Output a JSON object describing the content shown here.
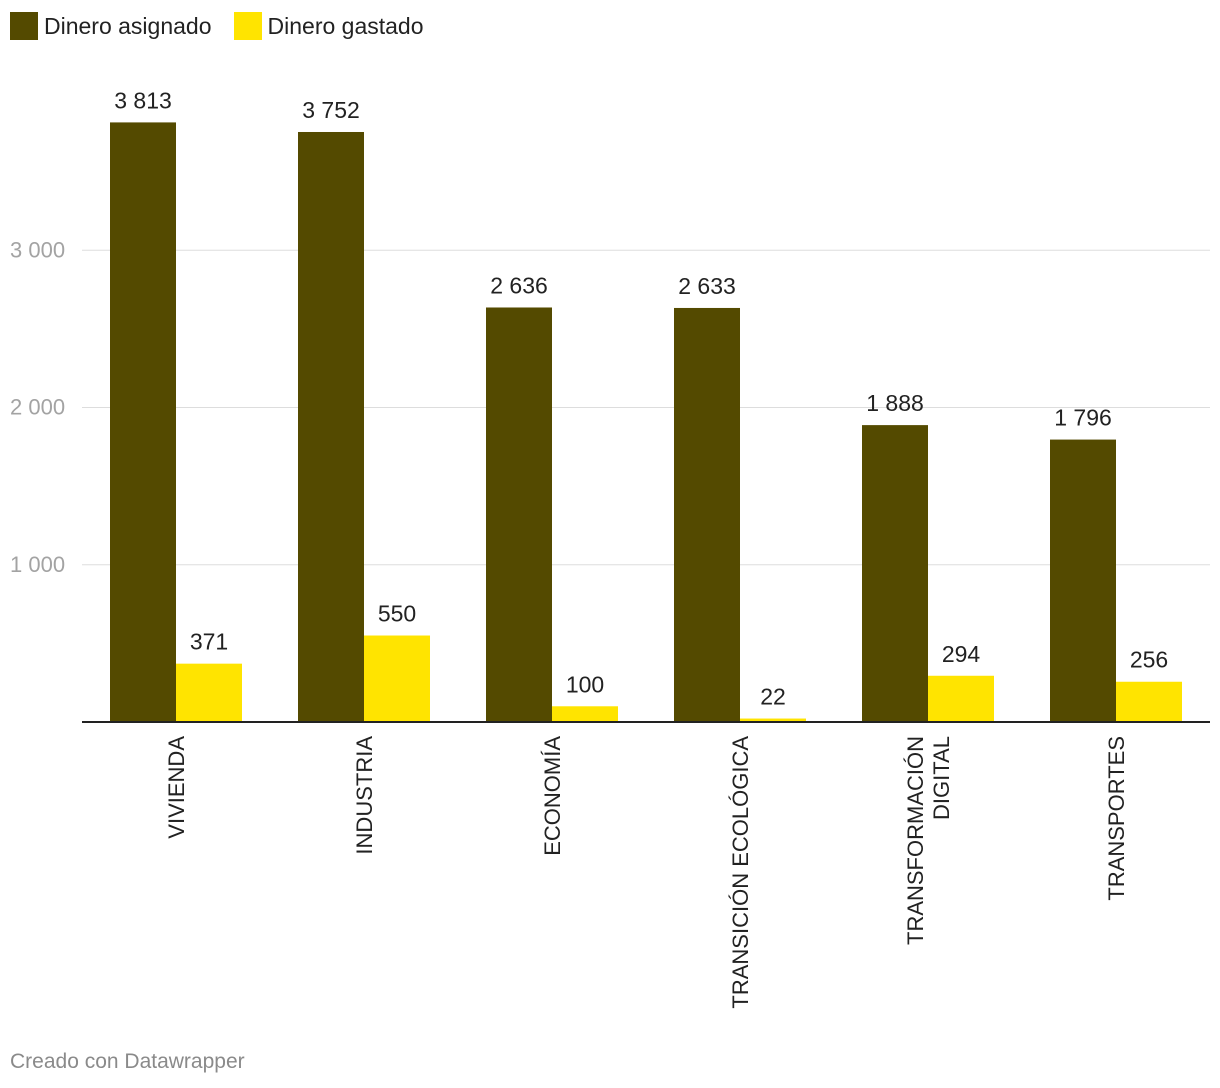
{
  "legend": [
    {
      "label": "Dinero asignado",
      "color": "#544a00"
    },
    {
      "label": "Dinero gastado",
      "color": "#ffe400"
    }
  ],
  "footer": {
    "credit": "Creado con Datawrapper"
  },
  "chart_data": {
    "type": "bar",
    "categories": [
      [
        "VIVIENDA"
      ],
      [
        "INDUSTRIA"
      ],
      [
        "ECONOMÍA"
      ],
      [
        "TRANSICIÓN ECOLÓGICA"
      ],
      [
        "TRANSFORMACIÓN",
        "DIGITAL"
      ],
      [
        "TRANSPORTES"
      ]
    ],
    "series": [
      {
        "name": "Dinero asignado",
        "color": "#544a00",
        "values": [
          3813,
          3752,
          2636,
          2633,
          1888,
          1796
        ],
        "labels": [
          "3 813",
          "3 752",
          "2 636",
          "2 633",
          "1 888",
          "1 796"
        ]
      },
      {
        "name": "Dinero gastado",
        "color": "#ffe400",
        "values": [
          371,
          550,
          100,
          22,
          294,
          256
        ],
        "labels": [
          "371",
          "550",
          "100",
          "22",
          "294",
          "256"
        ]
      }
    ],
    "yticks": [
      1000,
      2000,
      3000
    ],
    "ytick_labels": [
      "1 000",
      "2 000",
      "3 000"
    ],
    "ylim": [
      0,
      4000
    ],
    "grid": true,
    "legend_position": "top-left"
  }
}
